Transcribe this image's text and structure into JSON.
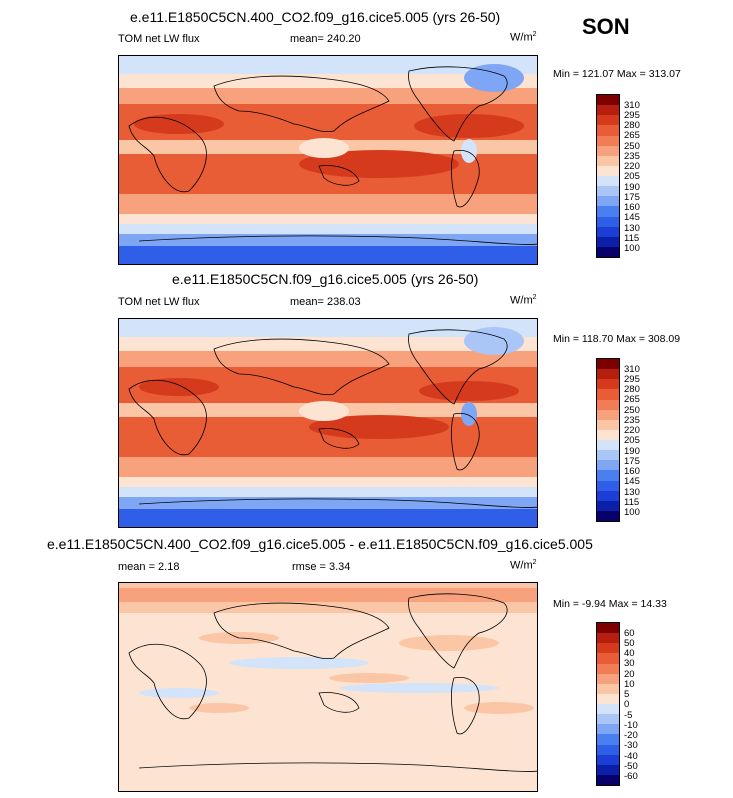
{
  "season": "SON",
  "panels": [
    {
      "title": "e.e11.E1850C5CN.400_CO2.f09_g16.cice5.005 (yrs 26-50)",
      "left_label": "TOM net LW flux",
      "mean_label": "mean=",
      "mean_value": "240.20",
      "units": "W/m",
      "units_exp": "2",
      "min_max": "Min = 121.07 Max = 313.07",
      "colorbar_labels": [
        "310",
        "295",
        "280",
        "265",
        "250",
        "235",
        "220",
        "205",
        "190",
        "175",
        "160",
        "145",
        "130",
        "115",
        "100"
      ]
    },
    {
      "title": "e.e11.E1850C5CN.f09_g16.cice5.005 (yrs 26-50)",
      "left_label": "TOM net LW flux",
      "mean_label": "mean=",
      "mean_value": "238.03",
      "units": "W/m",
      "units_exp": "2",
      "min_max": "Min = 118.70 Max = 308.09",
      "colorbar_labels": [
        "310",
        "295",
        "280",
        "265",
        "250",
        "235",
        "220",
        "205",
        "190",
        "175",
        "160",
        "145",
        "130",
        "115",
        "100"
      ]
    },
    {
      "title": "e.e11.E1850C5CN.400_CO2.f09_g16.cice5.005 - e.e11.E1850C5CN.f09_g16.cice5.005",
      "left_label": "mean =   2.18",
      "mid_label": "rmse =   3.34",
      "units": "W/m",
      "units_exp": "2",
      "min_max": "Min = -9.94 Max = 14.33",
      "colorbar_labels": [
        "60",
        "50",
        "40",
        "30",
        "20",
        "10",
        "5",
        "0",
        "-5",
        "-10",
        "-20",
        "-30",
        "-40",
        "-50",
        "-60"
      ]
    }
  ],
  "colors": {
    "abs_scale": [
      "#08006b",
      "#0b1fa8",
      "#1a3ed6",
      "#2f5fe8",
      "#4a7ff0",
      "#7ea6f4",
      "#a9c6f7",
      "#d2e3fa",
      "#fde4d2",
      "#fbc6a6",
      "#f7a27c",
      "#f17c56",
      "#e85c36",
      "#d63a1c",
      "#b61e0e",
      "#7d0000"
    ],
    "diff_scale": [
      "#08006b",
      "#0b1fa8",
      "#1a3ed6",
      "#2f5fe8",
      "#4a7ff0",
      "#7ea6f4",
      "#a9c6f7",
      "#d2e3fa",
      "#fde4d2",
      "#fbc6a6",
      "#f7a27c",
      "#f17c56",
      "#e85c36",
      "#d63a1c",
      "#b61e0e",
      "#7d0000"
    ]
  }
}
